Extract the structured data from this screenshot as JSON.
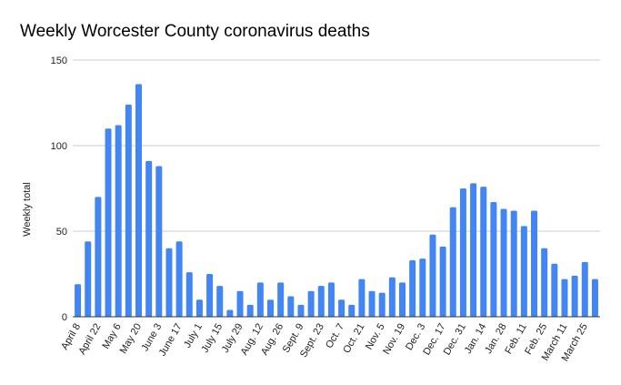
{
  "chart_data": {
    "type": "bar",
    "title": "Weekly Worcester County coronavirus deaths",
    "xlabel": "",
    "ylabel": "Weekly total",
    "ylim": [
      0,
      150
    ],
    "yticks": [
      0,
      50,
      100,
      150
    ],
    "grid": true,
    "bar_color": "#4285f4",
    "categories": [
      "April 8",
      "",
      "April 22",
      "",
      "May 6",
      "",
      "May 20",
      "",
      "June 3",
      "",
      "June 17",
      "",
      "July 1",
      "",
      "July 15",
      "",
      "July 29",
      "",
      "Aug. 12",
      "",
      "Aug. 26",
      "",
      "Sept. 9",
      "",
      "Sept. 23",
      "",
      "Oct. 7",
      "",
      "Oct. 21",
      "",
      "Nov. 5",
      "",
      "Nov. 19",
      "",
      "Dec. 3",
      "",
      "Dec. 17",
      "",
      "Dec. 31",
      "",
      "Jan. 14",
      "",
      "Jan. 28",
      "",
      "Feb. 11",
      "",
      "Feb. 25",
      "",
      "March 11",
      "",
      "March 25",
      ""
    ],
    "values": [
      19,
      44,
      70,
      110,
      112,
      124,
      136,
      91,
      88,
      40,
      44,
      26,
      10,
      25,
      18,
      4,
      15,
      7,
      20,
      10,
      20,
      12,
      7,
      15,
      18,
      20,
      10,
      7,
      22,
      15,
      14,
      23,
      20,
      33,
      34,
      48,
      41,
      64,
      75,
      78,
      76,
      67,
      63,
      62,
      53,
      62,
      40,
      31,
      22,
      24,
      32,
      22
    ]
  }
}
